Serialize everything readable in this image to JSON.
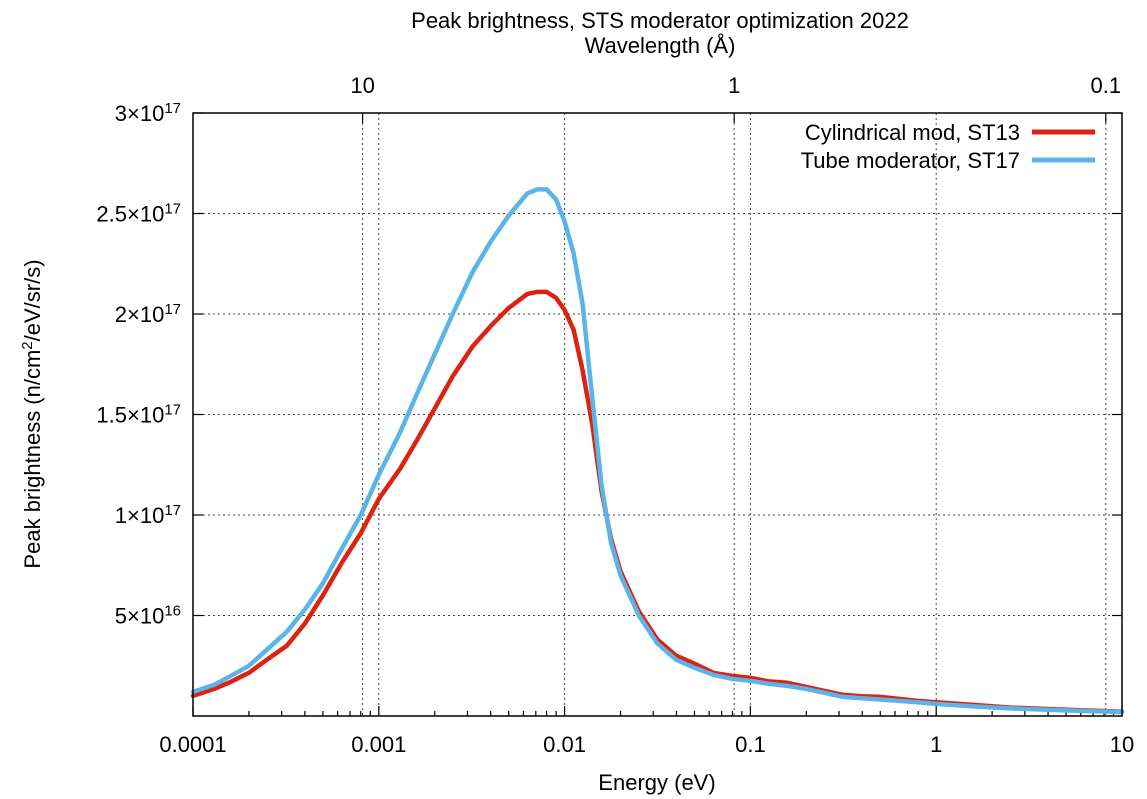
{
  "chart_data": {
    "type": "line",
    "title": "Peak brightness, STS moderator optimization 2022",
    "x2label": "Wavelength (Å)",
    "xlabel": "Energy (eV)",
    "ylabel": "Peak brightness (n/cm²/eV/sr/s)",
    "xscale": "log",
    "xlim": [
      0.0001,
      10
    ],
    "ylim": [
      0,
      3e+17
    ],
    "grid": true,
    "legend_position": "top-right",
    "x_ticks": [
      {
        "value": 0.0001,
        "label": "0.0001"
      },
      {
        "value": 0.001,
        "label": "0.001"
      },
      {
        "value": 0.01,
        "label": "0.01"
      },
      {
        "value": 0.1,
        "label": "0.1"
      },
      {
        "value": 1,
        "label": "1"
      },
      {
        "value": 10,
        "label": "10"
      }
    ],
    "x2_ticks": [
      {
        "value": 10,
        "label": "10"
      },
      {
        "value": 1,
        "label": "1"
      },
      {
        "value": 0.1,
        "label": "0.1"
      }
    ],
    "y_ticks": [
      {
        "value": 5e+16,
        "mantissa": "5",
        "exponent": "16"
      },
      {
        "value": 1e+17,
        "mantissa": "1",
        "exponent": "17"
      },
      {
        "value": 1.5e+17,
        "mantissa": "1.5",
        "exponent": "17"
      },
      {
        "value": 2e+17,
        "mantissa": "2",
        "exponent": "17"
      },
      {
        "value": 2.5e+17,
        "mantissa": "2.5",
        "exponent": "17"
      },
      {
        "value": 3e+17,
        "mantissa": "3",
        "exponent": "17"
      }
    ],
    "series": [
      {
        "name": "Cylindrical mod, ST13",
        "color": "#dd2211",
        "x": [
          0.0001,
          0.00013,
          0.00016,
          0.0002,
          0.00025,
          0.00032,
          0.0004,
          0.0005,
          0.00063,
          0.0008,
          0.001,
          0.0013,
          0.0016,
          0.002,
          0.0025,
          0.0032,
          0.004,
          0.005,
          0.0063,
          0.0071,
          0.008,
          0.009,
          0.01,
          0.0112,
          0.0125,
          0.0141,
          0.0158,
          0.0178,
          0.02,
          0.0251,
          0.0316,
          0.0398,
          0.05,
          0.0631,
          0.0794,
          0.1,
          0.126,
          0.158,
          0.2,
          0.251,
          0.316,
          0.398,
          0.501,
          0.631,
          0.794,
          1.0,
          1.585,
          2.512,
          3.981,
          6.31,
          10
        ],
        "values": [
          1e+16,
          1.35e+16,
          1.7e+16,
          2.15e+16,
          2.8e+16,
          3.5e+16,
          4.6e+16,
          6e+16,
          7.6e+16,
          9.1e+16,
          1.08e+17,
          1.23e+17,
          1.37e+17,
          1.53e+17,
          1.69e+17,
          1.84e+17,
          1.94e+17,
          2.03e+17,
          2.1e+17,
          2.11e+17,
          2.11e+17,
          2.08e+17,
          2.02e+17,
          1.92e+17,
          1.72e+17,
          1.45e+17,
          1.12e+17,
          8.8e+16,
          7.2e+16,
          5.2e+16,
          3.8e+16,
          3e+16,
          2.6e+16,
          2.15e+16,
          2e+16,
          1.9e+16,
          1.72e+16,
          1.65e+16,
          1.45e+16,
          1.25e+16,
          1.05e+16,
          9800000000000000.0,
          9500000000000000.0,
          8500000000000000.0,
          7500000000000000.0,
          6800000000000000.0,
          5500000000000000.0,
          4200000000000000.0,
          3500000000000000.0,
          2800000000000000.0,
          2200000000000000.0
        ]
      },
      {
        "name": "Tube moderator, ST17",
        "color": "#5ab4e8",
        "x": [
          0.0001,
          0.00013,
          0.00016,
          0.0002,
          0.00025,
          0.00032,
          0.0004,
          0.0005,
          0.00063,
          0.0008,
          0.001,
          0.0013,
          0.0016,
          0.002,
          0.0025,
          0.0032,
          0.004,
          0.005,
          0.0063,
          0.0071,
          0.008,
          0.009,
          0.01,
          0.0112,
          0.0125,
          0.0141,
          0.0158,
          0.0178,
          0.02,
          0.0251,
          0.0316,
          0.0398,
          0.05,
          0.0631,
          0.0794,
          0.1,
          0.126,
          0.158,
          0.2,
          0.251,
          0.316,
          0.398,
          0.501,
          0.631,
          0.794,
          1.0,
          1.585,
          2.512,
          3.981,
          6.31,
          10
        ],
        "values": [
          1.2e+16,
          1.55e+16,
          2e+16,
          2.5e+16,
          3.3e+16,
          4.2e+16,
          5.3e+16,
          6.6e+16,
          8.3e+16,
          1e+17,
          1.2e+17,
          1.41e+17,
          1.6e+17,
          1.8e+17,
          2e+17,
          2.21e+17,
          2.36e+17,
          2.49e+17,
          2.6e+17,
          2.62e+17,
          2.62e+17,
          2.57e+17,
          2.46e+17,
          2.3e+17,
          2.05e+17,
          1.58e+17,
          1.15e+17,
          8.6e+16,
          7e+16,
          5e+16,
          3.6e+16,
          2.8e+16,
          2.4e+16,
          2.05e+16,
          1.85e+16,
          1.75e+16,
          1.6e+16,
          1.5e+16,
          1.35e+16,
          1.15e+16,
          9500000000000000.0,
          8800000000000000.0,
          8200000000000000.0,
          7500000000000000.0,
          6800000000000000.0,
          6000000000000000.0,
          4800000000000000.0,
          3800000000000000.0,
          3100000000000000.0,
          2500000000000000.0,
          2000000000000000.0
        ]
      }
    ]
  }
}
